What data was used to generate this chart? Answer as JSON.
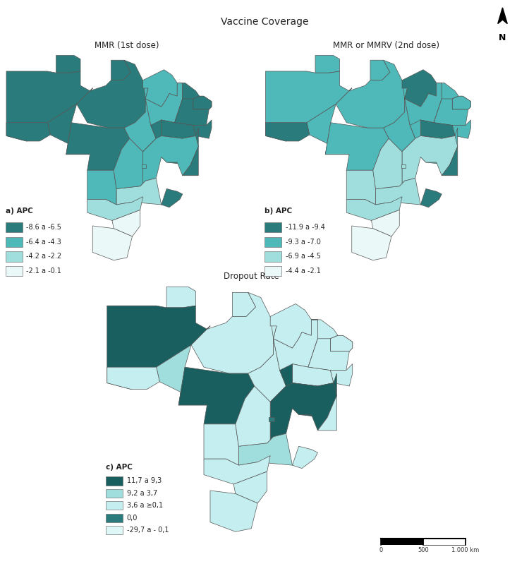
{
  "title": "Vaccine Coverage",
  "subtitle_a": "MMR (1st dose)",
  "subtitle_b": "MMR or MMRV (2nd dose)",
  "subtitle_c": "Dropout Rate",
  "legend_a_title": "a) APC",
  "legend_a_labels": [
    "-8.6 a -6.5",
    "-6.4 a -4.3",
    "-4.2 a -2.2",
    "-2.1 a -0.1"
  ],
  "legend_b_title": "b) APC",
  "legend_b_labels": [
    "-11.9 a -9.4",
    "-9.3 a -7.0",
    "-6.9 a -4.5",
    "-4.4 a -2.1"
  ],
  "legend_c_title": "c) APC",
  "legend_c_labels": [
    "11,7 a 9,3",
    "9,2 a 3,7",
    "3,6 a ≥0,1",
    "0,0",
    "-29,7 a - 0,1"
  ],
  "colors_a": [
    "#2a7b7b",
    "#4fb8b8",
    "#a0dede",
    "#eaf8f8"
  ],
  "colors_b": [
    "#2a7b7b",
    "#4fb8b8",
    "#a0dede",
    "#eaf8f8"
  ],
  "colors_c": [
    "#1a5f5f",
    "#a0dede",
    "#c5eef0",
    "#2a7b7b",
    "#e0f7f8"
  ],
  "state_colors_a": {
    "AM": "#2a7b7b",
    "PA": "#2a7b7b",
    "MT": "#2a7b7b",
    "RO": "#2a7b7b",
    "AC": "#2a7b7b",
    "RR": "#2a7b7b",
    "AP": "#2a7b7b",
    "TO": "#4fb8b8",
    "MA": "#4fb8b8",
    "PI": "#4fb8b8",
    "CE": "#2a7b7b",
    "RN": "#2a7b7b",
    "PB": "#2a7b7b",
    "PE": "#2a7b7b",
    "AL": "#2a7b7b",
    "SE": "#2a7b7b",
    "BA": "#2a7b7b",
    "MG": "#4fb8b8",
    "ES": "#2a7b7b",
    "RJ": "#2a7b7b",
    "SP": "#a0dede",
    "GO": "#4fb8b8",
    "DF": "#4fb8b8",
    "MS": "#4fb8b8",
    "PR": "#a0dede",
    "SC": "#eaf8f8",
    "RS": "#eaf8f8"
  },
  "state_colors_b": {
    "AM": "#4fb8b8",
    "PA": "#4fb8b8",
    "MT": "#4fb8b8",
    "RO": "#4fb8b8",
    "AC": "#2a7b7b",
    "RR": "#4fb8b8",
    "AP": "#4fb8b8",
    "TO": "#4fb8b8",
    "MA": "#2a7b7b",
    "PI": "#4fb8b8",
    "CE": "#4fb8b8",
    "RN": "#4fb8b8",
    "PB": "#4fb8b8",
    "PE": "#4fb8b8",
    "AL": "#4fb8b8",
    "SE": "#2a7b7b",
    "BA": "#4fb8b8",
    "MG": "#a0dede",
    "ES": "#2a7b7b",
    "RJ": "#2a7b7b",
    "SP": "#a0dede",
    "GO": "#a0dede",
    "DF": "#a0dede",
    "MS": "#a0dede",
    "PR": "#a0dede",
    "SC": "#eaf8f8",
    "RS": "#eaf8f8"
  },
  "state_colors_c": {
    "AM": "#1a5f5f",
    "PA": "#c5eef0",
    "MT": "#1a5f5f",
    "RO": "#a0dede",
    "AC": "#c5eef0",
    "RR": "#c5eef0",
    "AP": "#c5eef0",
    "TO": "#c5eef0",
    "MA": "#c5eef0",
    "PI": "#c5eef0",
    "CE": "#c5eef0",
    "RN": "#c5eef0",
    "PB": "#c5eef0",
    "PE": "#c5eef0",
    "AL": "#c5eef0",
    "SE": "#c5eef0",
    "BA": "#1a5f5f",
    "MG": "#1a5f5f",
    "ES": "#c5eef0",
    "RJ": "#c5eef0",
    "SP": "#a0dede",
    "GO": "#c5eef0",
    "DF": "#2a7b7b",
    "MS": "#c5eef0",
    "PR": "#c5eef0",
    "SC": "#c5eef0",
    "RS": "#c5eef0"
  },
  "background_color": "#ffffff"
}
